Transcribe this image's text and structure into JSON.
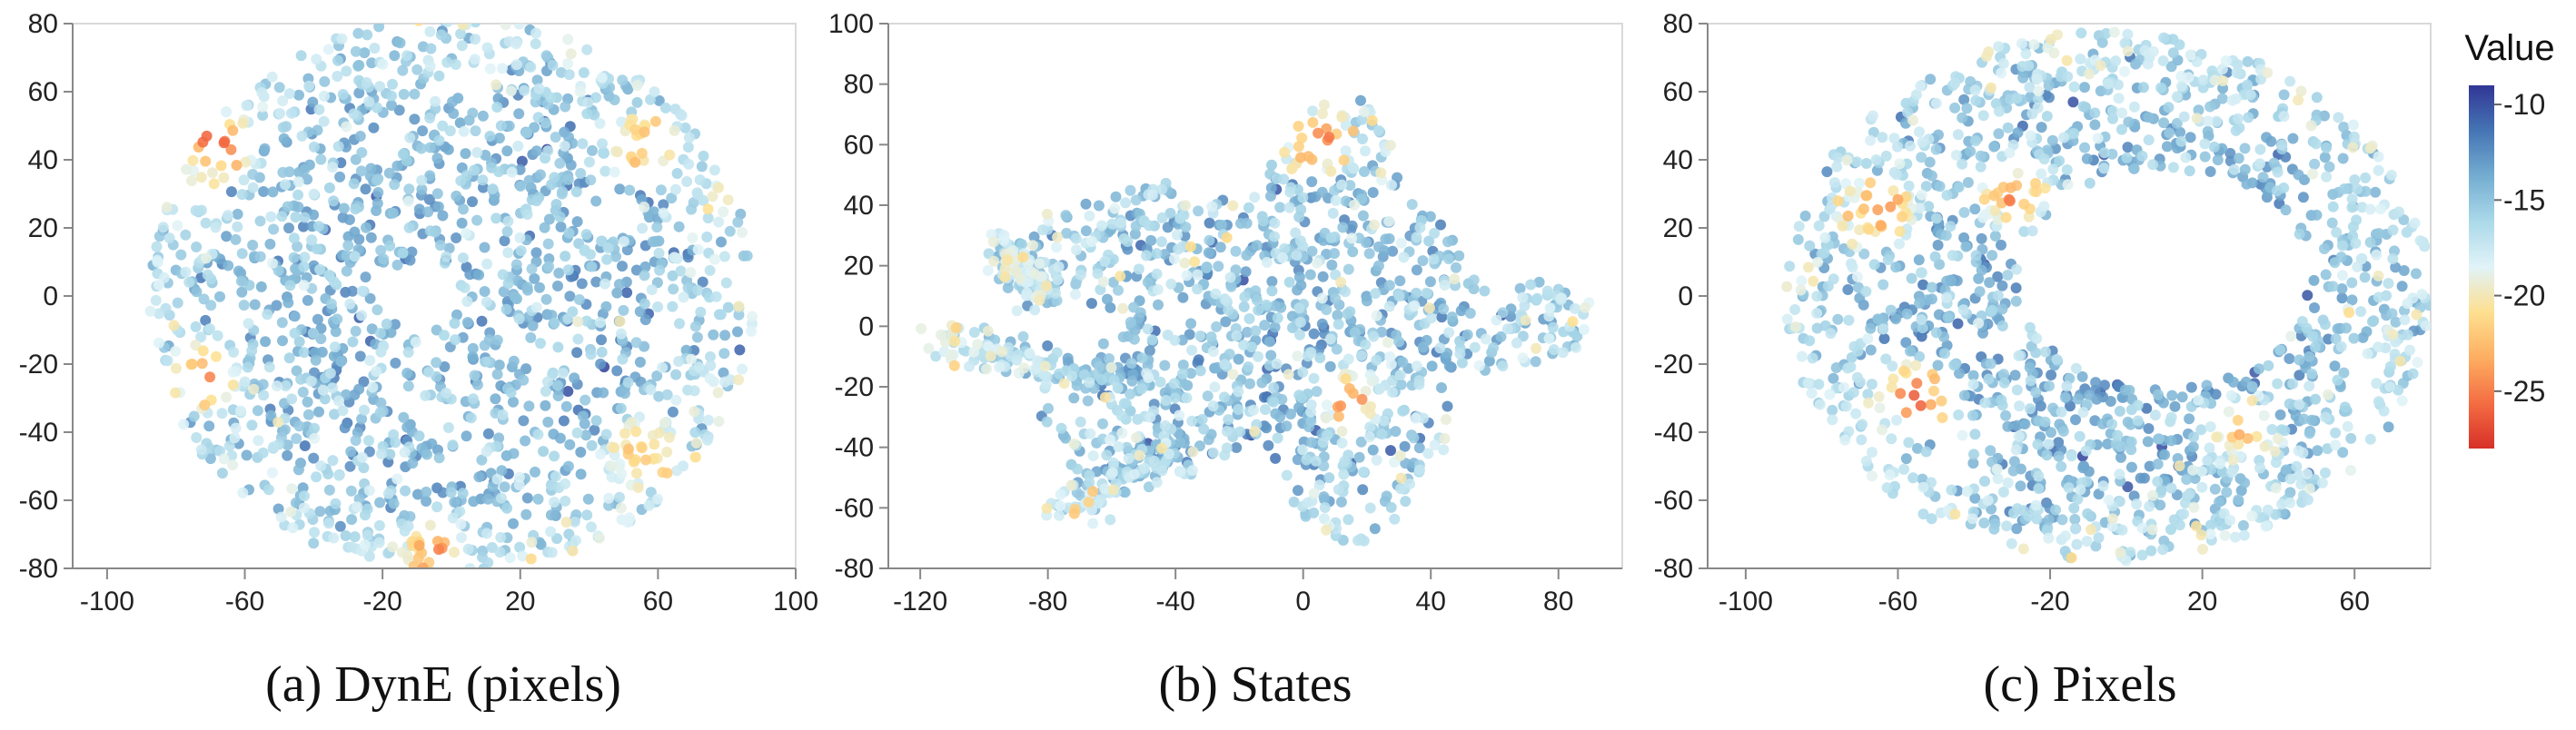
{
  "legend": {
    "title": "Value",
    "ticks": [
      -10,
      -15,
      -20,
      -25
    ],
    "range": [
      -28,
      -9
    ],
    "colormap": [
      "#d73027",
      "#f46d43",
      "#fdae61",
      "#fee090",
      "#e0f3f8",
      "#abd9e9",
      "#74add1",
      "#4575b4",
      "#313695"
    ]
  },
  "chart_data": [
    {
      "type": "scatter",
      "caption": "(a) DynE (pixels)",
      "xlim": [
        -110,
        100
      ],
      "ylim": [
        -80,
        80
      ],
      "xticks": [
        -100,
        -60,
        -20,
        20,
        60,
        100
      ],
      "yticks": [
        80,
        60,
        40,
        20,
        0,
        -20,
        -40,
        -60,
        -80
      ],
      "shape": "disk",
      "center": [
        0,
        0
      ],
      "extent": [
        88,
        82
      ],
      "hole": {
        "center": [
          -10,
          0
        ],
        "r": [
          10,
          10
        ]
      },
      "point_count": 1700,
      "value_mean": -14.5,
      "value_spread": 2.8,
      "low_value_regions": [
        {
          "x": -68,
          "y": 44,
          "min": -27
        },
        {
          "x": -72,
          "y": -24,
          "min": -26
        },
        {
          "x": -5,
          "y": -75,
          "min": -25
        },
        {
          "x": 55,
          "y": 45,
          "min": -24
        },
        {
          "x": 55,
          "y": -45,
          "min": -23
        }
      ]
    },
    {
      "type": "scatter",
      "caption": "(b) States",
      "xlim": [
        -130,
        100
      ],
      "ylim": [
        -80,
        100
      ],
      "xticks": [
        -120,
        -80,
        -40,
        0,
        40,
        80
      ],
      "yticks": [
        100,
        80,
        60,
        40,
        20,
        0,
        -20,
        -40,
        -60,
        -80
      ],
      "shape": "blob",
      "center": [
        -5,
        0
      ],
      "extent": [
        95,
        75
      ],
      "arms": [
        {
          "from": [
            -50,
            -20
          ],
          "to": [
            -115,
            -5
          ]
        },
        {
          "from": [
            -40,
            -40
          ],
          "to": [
            -75,
            -60
          ]
        },
        {
          "from": [
            -80,
            10
          ],
          "to": [
            -95,
            25
          ]
        }
      ],
      "point_count": 1500,
      "value_mean": -14.8,
      "value_spread": 3.2,
      "low_value_regions": [
        {
          "x": 5,
          "y": 60,
          "min": -27
        },
        {
          "x": 15,
          "y": -25,
          "min": -26
        }
      ]
    },
    {
      "type": "scatter",
      "caption": "(c) Pixels",
      "xlim": [
        -110,
        80
      ],
      "ylim": [
        -80,
        80
      ],
      "xticks": [
        -100,
        -60,
        -20,
        20,
        60
      ],
      "yticks": [
        80,
        60,
        40,
        20,
        0,
        -20,
        -40,
        -60,
        -80
      ],
      "shape": "ring",
      "center": [
        -5,
        0
      ],
      "extent": [
        85,
        78
      ],
      "hole": {
        "center": [
          10,
          5
        ],
        "r": [
          38,
          32
        ]
      },
      "point_count": 1600,
      "value_mean": -14.4,
      "value_spread": 2.9,
      "low_value_regions": [
        {
          "x": -55,
          "y": -30,
          "min": -28
        },
        {
          "x": -65,
          "y": 25,
          "min": -26
        },
        {
          "x": -30,
          "y": 30,
          "min": -25
        },
        {
          "x": 30,
          "y": -40,
          "min": -23
        }
      ]
    }
  ]
}
